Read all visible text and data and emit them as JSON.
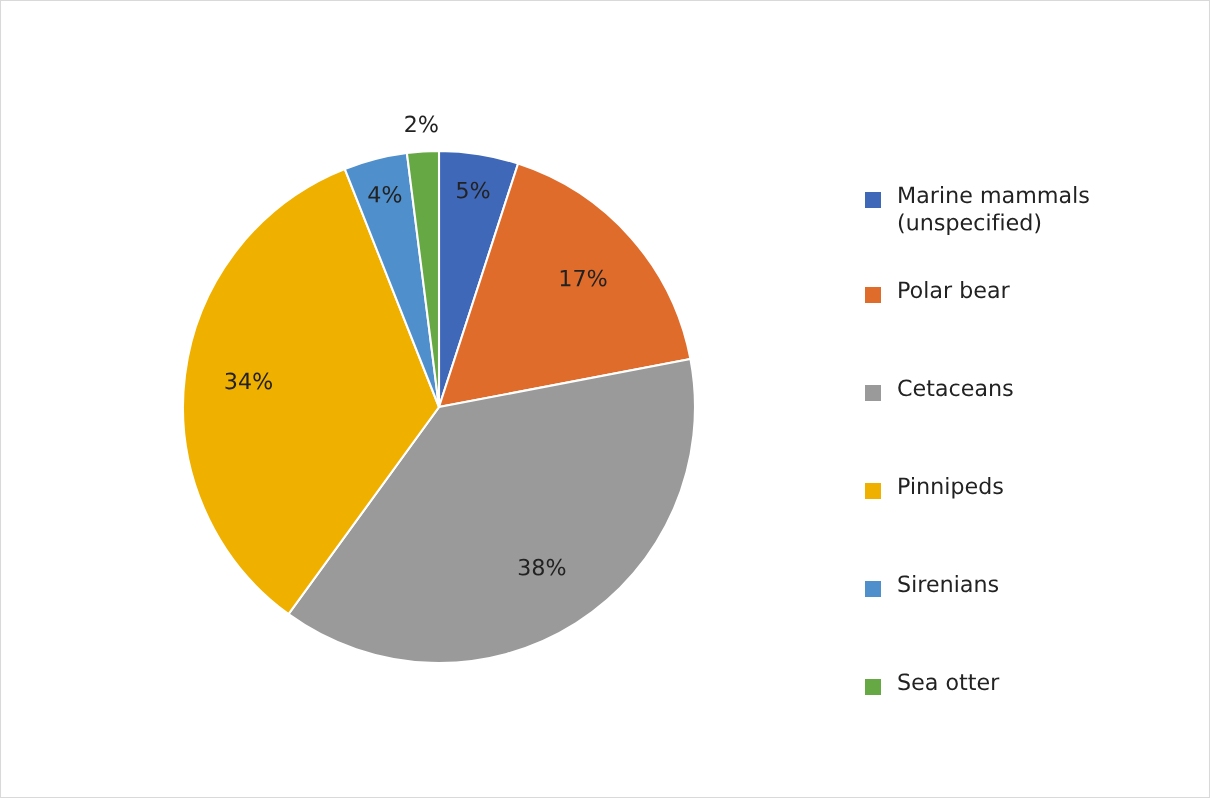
{
  "chart_data": {
    "type": "pie",
    "categories": [
      "Marine mammals (unspecified)",
      "Polar bear",
      "Cetaceans",
      "Pinnipeds",
      "Sirenians",
      "Sea otter"
    ],
    "values": [
      5,
      17,
      38,
      34,
      4,
      2
    ],
    "value_labels": [
      "5%",
      "17%",
      "38%",
      "34%",
      "4%",
      "2%"
    ],
    "colors": [
      "#4068b8",
      "#e06c2c",
      "#9a9a9a",
      "#f0b000",
      "#4f8fcc",
      "#66a844"
    ],
    "legend": "right"
  }
}
